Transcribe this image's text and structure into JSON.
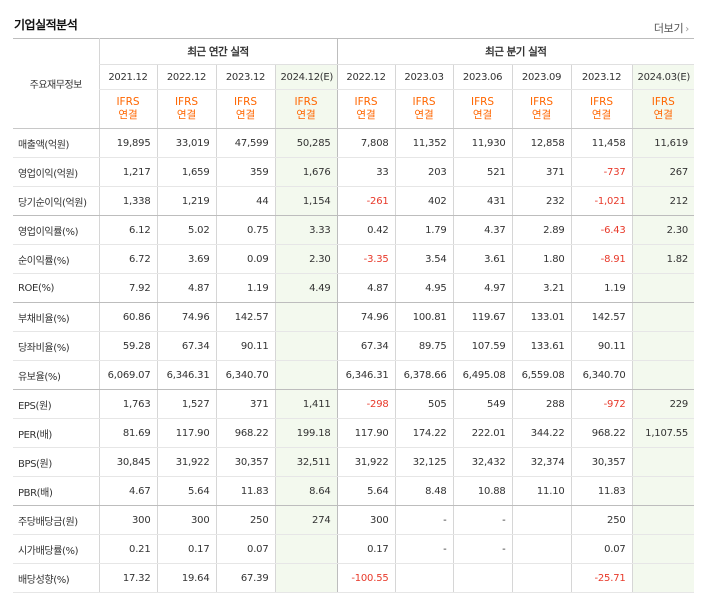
{
  "header": {
    "title": "기업실적분석",
    "more_label": "더보기",
    "more_icon": "chevron-right-icon"
  },
  "table": {
    "row_header_label": "주요재무정보",
    "annual_group_label": "최근 연간 실적",
    "quarterly_group_label": "최근 분기 실적",
    "annual_periods": [
      "2021.12",
      "2022.12",
      "2023.12",
      "2024.12(E)"
    ],
    "quarterly_periods": [
      "2022.12",
      "2023.03",
      "2023.06",
      "2023.09",
      "2023.12",
      "2024.03(E)"
    ],
    "standard_label": "IFRS",
    "basis_label": "연결",
    "estimate_bg_color": "#f3f9ee",
    "negative_color": "#e8392a",
    "accent_color": "#ff6600",
    "rows": [
      {
        "label": "매출액(억원)",
        "values": [
          "19,895",
          "33,019",
          "47,599",
          "50,285",
          "7,808",
          "11,352",
          "11,930",
          "12,858",
          "11,458",
          "11,619"
        ]
      },
      {
        "label": "영업이익(억원)",
        "values": [
          "1,217",
          "1,659",
          "359",
          "1,676",
          "33",
          "203",
          "521",
          "371",
          "-737",
          "267"
        ]
      },
      {
        "label": "당기순이익(억원)",
        "values": [
          "1,338",
          "1,219",
          "44",
          "1,154",
          "-261",
          "402",
          "431",
          "232",
          "-1,021",
          "212"
        ]
      },
      {
        "label": "영업이익률(%)",
        "values": [
          "6.12",
          "5.02",
          "0.75",
          "3.33",
          "0.42",
          "1.79",
          "4.37",
          "2.89",
          "-6.43",
          "2.30"
        ]
      },
      {
        "label": "순이익률(%)",
        "values": [
          "6.72",
          "3.69",
          "0.09",
          "2.30",
          "-3.35",
          "3.54",
          "3.61",
          "1.80",
          "-8.91",
          "1.82"
        ]
      },
      {
        "label": "ROE(%)",
        "values": [
          "7.92",
          "4.87",
          "1.19",
          "4.49",
          "4.87",
          "4.95",
          "4.97",
          "3.21",
          "1.19",
          ""
        ]
      },
      {
        "label": "부채비율(%)",
        "values": [
          "60.86",
          "74.96",
          "142.57",
          "",
          "74.96",
          "100.81",
          "119.67",
          "133.01",
          "142.57",
          ""
        ]
      },
      {
        "label": "당좌비율(%)",
        "values": [
          "59.28",
          "67.34",
          "90.11",
          "",
          "67.34",
          "89.75",
          "107.59",
          "133.61",
          "90.11",
          ""
        ]
      },
      {
        "label": "유보율(%)",
        "values": [
          "6,069.07",
          "6,346.31",
          "6,340.70",
          "",
          "6,346.31",
          "6,378.66",
          "6,495.08",
          "6,559.08",
          "6,340.70",
          ""
        ]
      },
      {
        "label": "EPS(원)",
        "values": [
          "1,763",
          "1,527",
          "371",
          "1,411",
          "-298",
          "505",
          "549",
          "288",
          "-972",
          "229"
        ]
      },
      {
        "label": "PER(배)",
        "values": [
          "81.69",
          "117.90",
          "968.22",
          "199.18",
          "117.90",
          "174.22",
          "222.01",
          "344.22",
          "968.22",
          "1,107.55"
        ]
      },
      {
        "label": "BPS(원)",
        "values": [
          "30,845",
          "31,922",
          "30,357",
          "32,511",
          "31,922",
          "32,125",
          "32,432",
          "32,374",
          "30,357",
          ""
        ]
      },
      {
        "label": "PBR(배)",
        "values": [
          "4.67",
          "5.64",
          "11.83",
          "8.64",
          "5.64",
          "8.48",
          "10.88",
          "11.10",
          "11.83",
          ""
        ]
      },
      {
        "label": "주당배당금(원)",
        "values": [
          "300",
          "300",
          "250",
          "274",
          "300",
          "-",
          "-",
          "",
          "250",
          ""
        ]
      },
      {
        "label": "시가배당률(%)",
        "values": [
          "0.21",
          "0.17",
          "0.07",
          "",
          "0.17",
          "-",
          "-",
          "",
          "0.07",
          ""
        ]
      },
      {
        "label": "배당성향(%)",
        "values": [
          "17.32",
          "19.64",
          "67.39",
          "",
          "-100.55",
          "",
          "",
          "",
          "-25.71",
          ""
        ]
      }
    ]
  }
}
